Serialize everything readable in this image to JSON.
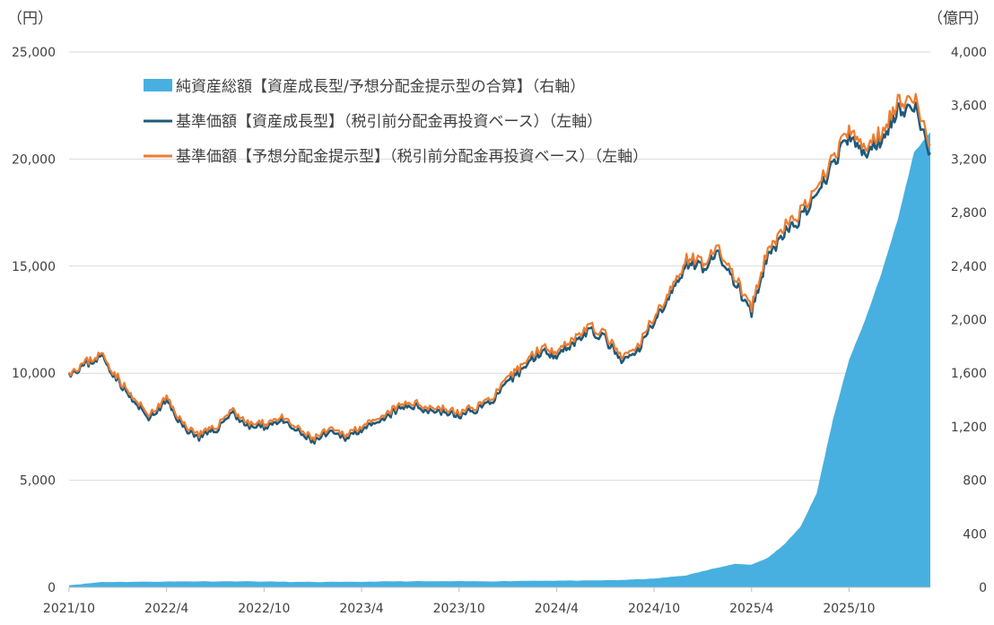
{
  "chart_data": {
    "type": "line",
    "left_axis_unit": "（円）",
    "right_axis_unit": "（億円）",
    "left_ylim": [
      0,
      25000
    ],
    "right_ylim": [
      0,
      4000
    ],
    "left_ticks": [
      "0",
      "5,000",
      "10,000",
      "15,000",
      "20,000",
      "25,000"
    ],
    "left_tick_values": [
      0,
      5000,
      10000,
      15000,
      20000,
      25000
    ],
    "right_ticks": [
      "0",
      "400",
      "800",
      "1,200",
      "1,600",
      "2,000",
      "2,400",
      "2,800",
      "3,200",
      "3,600",
      "4,000"
    ],
    "right_tick_values": [
      0,
      400,
      800,
      1200,
      1600,
      2000,
      2400,
      2800,
      3200,
      3600,
      4000
    ],
    "x_tick_labels": [
      "2021/10",
      "2022/4",
      "2022/10",
      "2023/4",
      "2023/10",
      "2024/4",
      "2024/10",
      "2025/4",
      "2025/10"
    ],
    "x_start": "2021/10",
    "x_end": "2026/3",
    "grid": true,
    "legend_position": "top-left",
    "series": [
      {
        "name": "純資産総額【資産成長型/予想分配金提示型の合算】（右軸）",
        "type": "area",
        "axis": "right",
        "color": "#47b0e0",
        "points": [
          [
            "2021/10",
            15
          ],
          [
            "2021/12",
            40
          ],
          [
            "2022/3",
            42
          ],
          [
            "2022/6",
            45
          ],
          [
            "2022/9",
            45
          ],
          [
            "2022/12",
            40
          ],
          [
            "2023/3",
            40
          ],
          [
            "2023/6",
            45
          ],
          [
            "2023/9",
            45
          ],
          [
            "2023/12",
            45
          ],
          [
            "2024/3",
            50
          ],
          [
            "2024/6",
            50
          ],
          [
            "2024/8",
            55
          ],
          [
            "2024/10",
            65
          ],
          [
            "2024/12",
            90
          ],
          [
            "2025/2",
            150
          ],
          [
            "2025/3",
            175
          ],
          [
            "2025/4",
            170
          ],
          [
            "2025/5",
            220
          ],
          [
            "2025/6",
            320
          ],
          [
            "2025/7",
            450
          ],
          [
            "2025/8",
            700
          ],
          [
            "2025/9",
            1250
          ],
          [
            "2025/10",
            1700
          ],
          [
            "2025/11",
            2000
          ],
          [
            "2025/12",
            2350
          ],
          [
            "2026/1",
            2750
          ],
          [
            "2026/2",
            3250
          ],
          [
            "2026/3",
            3400
          ]
        ]
      },
      {
        "name": "基準価額【資産成長型】（税引前分配金再投資ベース）（左軸）",
        "type": "line",
        "axis": "left",
        "color": "#1f5a7a",
        "points": [
          [
            "2021/10",
            10000
          ],
          [
            "2021/11",
            10400
          ],
          [
            "2021/12",
            10800
          ],
          [
            "2022/1",
            9700
          ],
          [
            "2022/2",
            8600
          ],
          [
            "2022/3",
            7900
          ],
          [
            "2022/4",
            8700
          ],
          [
            "2022/5",
            7500
          ],
          [
            "2022/6",
            7000
          ],
          [
            "2022/7",
            7300
          ],
          [
            "2022/8",
            8200
          ],
          [
            "2022/9",
            7500
          ],
          [
            "2022/10",
            7500
          ],
          [
            "2022/11",
            7800
          ],
          [
            "2022/12",
            7300
          ],
          [
            "2023/1",
            6800
          ],
          [
            "2023/2",
            7200
          ],
          [
            "2023/3",
            7000
          ],
          [
            "2023/4",
            7400
          ],
          [
            "2023/5",
            7600
          ],
          [
            "2023/6",
            8200
          ],
          [
            "2023/7",
            8500
          ],
          [
            "2023/8",
            8300
          ],
          [
            "2023/9",
            8200
          ],
          [
            "2023/10",
            8000
          ],
          [
            "2023/11",
            8300
          ],
          [
            "2023/12",
            8700
          ],
          [
            "2024/1",
            9500
          ],
          [
            "2024/2",
            10300
          ],
          [
            "2024/3",
            11000
          ],
          [
            "2024/4",
            10900
          ],
          [
            "2024/5",
            11400
          ],
          [
            "2024/6",
            12000
          ],
          [
            "2024/7",
            11600
          ],
          [
            "2024/8",
            10500
          ],
          [
            "2024/9",
            11000
          ],
          [
            "2024/10",
            12500
          ],
          [
            "2024/11",
            13600
          ],
          [
            "2024/12",
            15200
          ],
          [
            "2025/1",
            15000
          ],
          [
            "2025/2",
            15500
          ],
          [
            "2025/3",
            14200
          ],
          [
            "2025/4",
            12800
          ],
          [
            "2025/5",
            15500
          ],
          [
            "2025/6",
            16500
          ],
          [
            "2025/7",
            17200
          ],
          [
            "2025/8",
            18200
          ],
          [
            "2025/9",
            19800
          ],
          [
            "2025/10",
            21000
          ],
          [
            "2025/11",
            20200
          ],
          [
            "2025/12",
            21000
          ],
          [
            "2026/1",
            22300
          ],
          [
            "2026/2",
            22500
          ],
          [
            "2026/3",
            20300
          ]
        ]
      },
      {
        "name": "基準価額【予想分配金提示型】（税引前分配金再投資ベース）（左軸）",
        "type": "line",
        "axis": "left",
        "color": "#ed7d31",
        "points": [
          [
            "2021/10",
            10050
          ],
          [
            "2021/11",
            10500
          ],
          [
            "2021/12",
            10900
          ],
          [
            "2022/1",
            9800
          ],
          [
            "2022/2",
            8750
          ],
          [
            "2022/3",
            8050
          ],
          [
            "2022/4",
            8850
          ],
          [
            "2022/5",
            7650
          ],
          [
            "2022/6",
            7150
          ],
          [
            "2022/7",
            7450
          ],
          [
            "2022/8",
            8350
          ],
          [
            "2022/9",
            7650
          ],
          [
            "2022/10",
            7650
          ],
          [
            "2022/11",
            7950
          ],
          [
            "2022/12",
            7450
          ],
          [
            "2023/1",
            6950
          ],
          [
            "2023/2",
            7350
          ],
          [
            "2023/3",
            7150
          ],
          [
            "2023/4",
            7550
          ],
          [
            "2023/5",
            7750
          ],
          [
            "2023/6",
            8350
          ],
          [
            "2023/7",
            8650
          ],
          [
            "2023/8",
            8450
          ],
          [
            "2023/9",
            8350
          ],
          [
            "2023/10",
            8150
          ],
          [
            "2023/11",
            8450
          ],
          [
            "2023/12",
            8850
          ],
          [
            "2024/1",
            9700
          ],
          [
            "2024/2",
            10500
          ],
          [
            "2024/3",
            11200
          ],
          [
            "2024/4",
            11100
          ],
          [
            "2024/5",
            11600
          ],
          [
            "2024/6",
            12200
          ],
          [
            "2024/7",
            11800
          ],
          [
            "2024/8",
            10700
          ],
          [
            "2024/9",
            11200
          ],
          [
            "2024/10",
            12700
          ],
          [
            "2024/11",
            13800
          ],
          [
            "2024/12",
            15400
          ],
          [
            "2025/1",
            15250
          ],
          [
            "2025/2",
            15750
          ],
          [
            "2025/3",
            14450
          ],
          [
            "2025/4",
            13050
          ],
          [
            "2025/5",
            15750
          ],
          [
            "2025/6",
            16800
          ],
          [
            "2025/7",
            17500
          ],
          [
            "2025/8",
            18500
          ],
          [
            "2025/9",
            20100
          ],
          [
            "2025/10",
            21300
          ],
          [
            "2025/11",
            20500
          ],
          [
            "2025/12",
            21300
          ],
          [
            "2026/1",
            22700
          ],
          [
            "2026/2",
            22900
          ],
          [
            "2026/3",
            20700
          ]
        ]
      }
    ]
  }
}
